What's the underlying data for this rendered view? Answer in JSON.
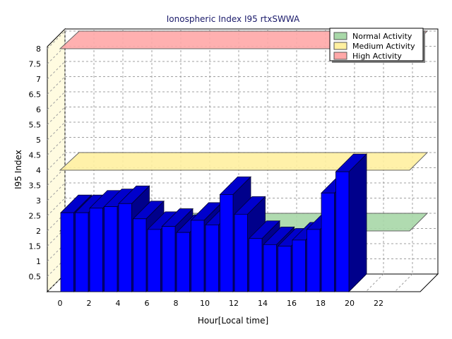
{
  "chart_data": {
    "type": "bar",
    "title": "Ionospheric Index I95 rtxSWWA",
    "xlabel": "Hour[Local time]",
    "ylabel": "I95 Index",
    "x": [
      0,
      1,
      2,
      3,
      4,
      5,
      6,
      7,
      8,
      9,
      10,
      11,
      12,
      13,
      14,
      15,
      16,
      17,
      18,
      19
    ],
    "values": [
      2.6,
      2.6,
      2.75,
      2.8,
      2.9,
      2.4,
      2.05,
      2.15,
      1.95,
      2.35,
      2.2,
      3.2,
      2.55,
      1.75,
      1.55,
      1.5,
      1.7,
      2.05,
      3.25,
      3.95
    ],
    "ylim": [
      0,
      8
    ],
    "xlim": [
      0,
      24
    ],
    "y_ticks": [
      "0.5",
      "1",
      "1.5",
      "2",
      "2.5",
      "3",
      "3.5",
      "4",
      "4.5",
      "5",
      "5.5",
      "6",
      "6.5",
      "7",
      "7.5",
      "8"
    ],
    "x_ticks": [
      "0",
      "2",
      "4",
      "6",
      "8",
      "10",
      "12",
      "14",
      "16",
      "18",
      "20",
      "22"
    ],
    "grid": true,
    "legend_position": "top-right",
    "bands": [
      {
        "name": "Normal Activity",
        "value": 2.0,
        "color": "#a8d8a8"
      },
      {
        "name": "Medium Activity",
        "value": 4.0,
        "color": "#fff0a0"
      },
      {
        "name": "High Activity",
        "value": 8.0,
        "color": "#ffa8a8"
      }
    ],
    "bar_color": "#0000ff"
  }
}
